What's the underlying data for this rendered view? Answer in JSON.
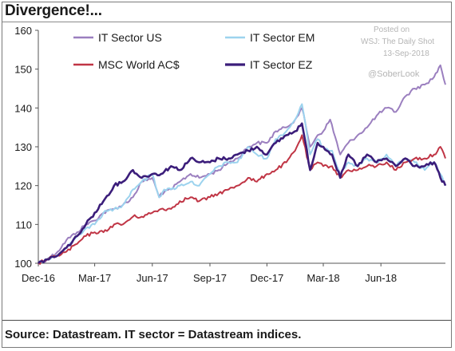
{
  "title": "Divergence!...",
  "source": "Source: Datastream. IT sector = Datastream indices.",
  "watermark": {
    "posted_on": "Posted on",
    "outlet": "WSJ: The Daily Shot",
    "date": "13-Sep-2018",
    "handle": "@SoberLook"
  },
  "chart_data": {
    "type": "line",
    "x_type": "date",
    "xlim": [
      "2016-12-01",
      "2018-09-12"
    ],
    "x_ticks": [
      {
        "label": "Dec-16",
        "date": "2016-12-01"
      },
      {
        "label": "Mar-17",
        "date": "2017-03-01"
      },
      {
        "label": "Jun-17",
        "date": "2017-06-01"
      },
      {
        "label": "Sep-17",
        "date": "2017-09-01"
      },
      {
        "label": "Dec-17",
        "date": "2017-12-01"
      },
      {
        "label": "Mar-18",
        "date": "2018-03-01"
      },
      {
        "label": "Jun-18",
        "date": "2018-06-01"
      }
    ],
    "ylim": [
      100,
      160
    ],
    "y_ticks": [
      100,
      110,
      120,
      130,
      140,
      150,
      160
    ],
    "grid": false,
    "legend_position": "top-left",
    "series": [
      {
        "name": "IT Sector US",
        "color": "#9b7fbf",
        "width": 2,
        "points": [
          [
            "2016-12-01",
            100
          ],
          [
            "2016-12-15",
            101
          ],
          [
            "2017-01-01",
            103
          ],
          [
            "2017-01-15",
            106
          ],
          [
            "2017-02-01",
            108
          ],
          [
            "2017-02-15",
            110
          ],
          [
            "2017-03-01",
            111
          ],
          [
            "2017-03-15",
            113
          ],
          [
            "2017-04-01",
            114
          ],
          [
            "2017-04-15",
            115
          ],
          [
            "2017-05-01",
            117
          ],
          [
            "2017-05-15",
            121
          ],
          [
            "2017-06-01",
            122
          ],
          [
            "2017-06-12",
            117
          ],
          [
            "2017-06-15",
            118
          ],
          [
            "2017-07-01",
            119
          ],
          [
            "2017-07-15",
            121
          ],
          [
            "2017-08-01",
            123
          ],
          [
            "2017-08-15",
            122
          ],
          [
            "2017-09-01",
            123
          ],
          [
            "2017-09-15",
            124
          ],
          [
            "2017-10-01",
            126
          ],
          [
            "2017-10-15",
            127
          ],
          [
            "2017-11-01",
            130
          ],
          [
            "2017-11-15",
            131
          ],
          [
            "2017-12-01",
            131
          ],
          [
            "2017-12-15",
            134
          ],
          [
            "2018-01-01",
            135
          ],
          [
            "2018-01-15",
            137
          ],
          [
            "2018-01-26",
            140
          ],
          [
            "2018-02-08",
            130
          ],
          [
            "2018-02-20",
            133
          ],
          [
            "2018-03-01",
            134
          ],
          [
            "2018-03-12",
            137
          ],
          [
            "2018-03-28",
            128
          ],
          [
            "2018-04-10",
            131
          ],
          [
            "2018-04-25",
            133
          ],
          [
            "2018-05-10",
            135
          ],
          [
            "2018-05-25",
            138
          ],
          [
            "2018-06-10",
            140
          ],
          [
            "2018-06-25",
            139
          ],
          [
            "2018-07-10",
            143
          ],
          [
            "2018-07-25",
            145
          ],
          [
            "2018-08-10",
            146
          ],
          [
            "2018-08-25",
            148
          ],
          [
            "2018-09-04",
            151
          ],
          [
            "2018-09-12",
            146
          ]
        ]
      },
      {
        "name": "IT Sector EM",
        "color": "#9cd3ee",
        "width": 2,
        "points": [
          [
            "2016-12-01",
            100
          ],
          [
            "2016-12-15",
            101
          ],
          [
            "2017-01-01",
            102
          ],
          [
            "2017-01-15",
            104
          ],
          [
            "2017-02-01",
            107
          ],
          [
            "2017-02-15",
            109
          ],
          [
            "2017-03-01",
            110
          ],
          [
            "2017-03-15",
            113
          ],
          [
            "2017-04-01",
            114
          ],
          [
            "2017-04-15",
            115
          ],
          [
            "2017-05-01",
            119
          ],
          [
            "2017-05-15",
            121
          ],
          [
            "2017-06-01",
            123
          ],
          [
            "2017-06-12",
            117
          ],
          [
            "2017-06-20",
            119
          ],
          [
            "2017-07-01",
            119
          ],
          [
            "2017-07-15",
            120
          ],
          [
            "2017-08-01",
            121
          ],
          [
            "2017-08-15",
            120
          ],
          [
            "2017-09-01",
            123
          ],
          [
            "2017-09-15",
            125
          ],
          [
            "2017-10-01",
            126
          ],
          [
            "2017-10-15",
            126
          ],
          [
            "2017-11-01",
            130
          ],
          [
            "2017-11-15",
            128
          ],
          [
            "2017-12-01",
            127
          ],
          [
            "2017-12-15",
            132
          ],
          [
            "2018-01-01",
            134
          ],
          [
            "2018-01-15",
            137
          ],
          [
            "2018-01-26",
            141
          ],
          [
            "2018-02-08",
            128
          ],
          [
            "2018-02-20",
            132
          ],
          [
            "2018-03-01",
            130
          ],
          [
            "2018-03-15",
            129
          ],
          [
            "2018-03-28",
            123
          ],
          [
            "2018-04-10",
            126
          ],
          [
            "2018-04-25",
            125
          ],
          [
            "2018-05-10",
            127
          ],
          [
            "2018-05-25",
            126
          ],
          [
            "2018-06-10",
            128
          ],
          [
            "2018-06-25",
            125
          ],
          [
            "2018-07-10",
            127
          ],
          [
            "2018-07-25",
            126
          ],
          [
            "2018-08-10",
            124
          ],
          [
            "2018-08-25",
            126
          ],
          [
            "2018-09-04",
            123
          ],
          [
            "2018-09-12",
            120
          ]
        ]
      },
      {
        "name": "MSC World AC$",
        "color": "#c03545",
        "width": 2,
        "points": [
          [
            "2016-12-01",
            100
          ],
          [
            "2016-12-15",
            101
          ],
          [
            "2017-01-01",
            102
          ],
          [
            "2017-01-15",
            103
          ],
          [
            "2017-02-01",
            105
          ],
          [
            "2017-02-15",
            107
          ],
          [
            "2017-03-01",
            108
          ],
          [
            "2017-03-15",
            108
          ],
          [
            "2017-04-01",
            110
          ],
          [
            "2017-04-15",
            110
          ],
          [
            "2017-05-01",
            112
          ],
          [
            "2017-05-15",
            112
          ],
          [
            "2017-06-01",
            113
          ],
          [
            "2017-06-15",
            114
          ],
          [
            "2017-07-01",
            114
          ],
          [
            "2017-07-15",
            116
          ],
          [
            "2017-08-01",
            117
          ],
          [
            "2017-08-15",
            116
          ],
          [
            "2017-09-01",
            117
          ],
          [
            "2017-09-15",
            118
          ],
          [
            "2017-10-01",
            119
          ],
          [
            "2017-10-15",
            120
          ],
          [
            "2017-11-01",
            122
          ],
          [
            "2017-11-15",
            121
          ],
          [
            "2017-12-01",
            123
          ],
          [
            "2017-12-15",
            124
          ],
          [
            "2018-01-01",
            126
          ],
          [
            "2018-01-15",
            129
          ],
          [
            "2018-01-26",
            133
          ],
          [
            "2018-02-08",
            124
          ],
          [
            "2018-02-20",
            126
          ],
          [
            "2018-03-01",
            125
          ],
          [
            "2018-03-15",
            125
          ],
          [
            "2018-03-28",
            122
          ],
          [
            "2018-04-10",
            124
          ],
          [
            "2018-04-25",
            124
          ],
          [
            "2018-05-10",
            125
          ],
          [
            "2018-05-25",
            125
          ],
          [
            "2018-06-10",
            126
          ],
          [
            "2018-06-25",
            124
          ],
          [
            "2018-07-10",
            126
          ],
          [
            "2018-07-25",
            127
          ],
          [
            "2018-08-10",
            127
          ],
          [
            "2018-08-25",
            128
          ],
          [
            "2018-09-04",
            130
          ],
          [
            "2018-09-12",
            127
          ]
        ]
      },
      {
        "name": "IT Sector EZ",
        "color": "#3b1d7a",
        "width": 2.6,
        "points": [
          [
            "2016-12-01",
            100
          ],
          [
            "2016-12-15",
            101
          ],
          [
            "2017-01-01",
            102
          ],
          [
            "2017-01-15",
            104
          ],
          [
            "2017-02-01",
            107
          ],
          [
            "2017-02-15",
            110
          ],
          [
            "2017-03-01",
            113
          ],
          [
            "2017-03-15",
            116
          ],
          [
            "2017-04-01",
            120
          ],
          [
            "2017-04-15",
            121
          ],
          [
            "2017-05-01",
            124
          ],
          [
            "2017-05-15",
            122
          ],
          [
            "2017-06-01",
            123
          ],
          [
            "2017-06-15",
            123
          ],
          [
            "2017-07-01",
            125
          ],
          [
            "2017-07-15",
            124
          ],
          [
            "2017-08-01",
            127
          ],
          [
            "2017-08-15",
            126
          ],
          [
            "2017-09-01",
            126
          ],
          [
            "2017-09-15",
            127
          ],
          [
            "2017-10-01",
            127
          ],
          [
            "2017-10-15",
            128
          ],
          [
            "2017-11-01",
            129
          ],
          [
            "2017-11-15",
            130
          ],
          [
            "2017-12-01",
            128
          ],
          [
            "2017-12-15",
            131
          ],
          [
            "2018-01-01",
            133
          ],
          [
            "2018-01-15",
            134
          ],
          [
            "2018-01-26",
            136
          ],
          [
            "2018-02-08",
            124
          ],
          [
            "2018-02-20",
            131
          ],
          [
            "2018-03-01",
            130
          ],
          [
            "2018-03-15",
            128
          ],
          [
            "2018-03-28",
            122
          ],
          [
            "2018-04-10",
            128
          ],
          [
            "2018-04-25",
            125
          ],
          [
            "2018-05-10",
            128
          ],
          [
            "2018-05-25",
            126
          ],
          [
            "2018-06-10",
            127
          ],
          [
            "2018-06-25",
            125
          ],
          [
            "2018-07-10",
            127
          ],
          [
            "2018-07-25",
            125
          ],
          [
            "2018-08-10",
            125
          ],
          [
            "2018-08-25",
            126
          ],
          [
            "2018-09-04",
            122
          ],
          [
            "2018-09-12",
            120
          ]
        ]
      }
    ]
  }
}
